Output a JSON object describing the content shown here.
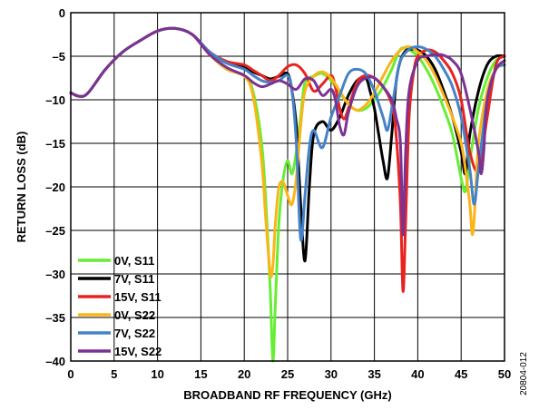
{
  "chart_data": {
    "type": "line",
    "xlabel": "BROADBAND RF FREQUENCY (GHz)",
    "ylabel": "RETURN LOSS (dB)",
    "xlim": [
      0,
      50
    ],
    "ylim": [
      -40,
      0
    ],
    "xticks": [
      0,
      5,
      10,
      15,
      20,
      25,
      30,
      35,
      40,
      45,
      50
    ],
    "yticks": [
      0,
      -5,
      -10,
      -15,
      -20,
      -25,
      -30,
      -35,
      -40
    ],
    "ytick_labels": [
      "0",
      "–5",
      "–10",
      "–15",
      "–20",
      "–25",
      "–30",
      "–35",
      "–40"
    ],
    "grid": true,
    "legend_position": "bottom-left",
    "figure_id": "20804-012",
    "series": [
      {
        "name": "0V, S11",
        "color": "#66ee33",
        "x": [
          0,
          1,
          2,
          4,
          6,
          8,
          10,
          12,
          14,
          16,
          18,
          20,
          21,
          22,
          22.5,
          23,
          23.3,
          23.6,
          24,
          24.5,
          25,
          25.5,
          26,
          26.5,
          27,
          28,
          29,
          30,
          31,
          32,
          33,
          34,
          35,
          36,
          37,
          38,
          39,
          40,
          41,
          42,
          43,
          44,
          45,
          45.5,
          46,
          47,
          48,
          49,
          50
        ],
        "y": [
          -9.2,
          -9.6,
          -9.2,
          -6.5,
          -4.5,
          -3.2,
          -2.1,
          -1.8,
          -2.5,
          -4.8,
          -6.5,
          -7.2,
          -9,
          -15,
          -22,
          -32,
          -40,
          -33,
          -24,
          -19,
          -17,
          -18.5,
          -16,
          -12,
          -8,
          -7.3,
          -7,
          -7.8,
          -9.2,
          -10.5,
          -11.2,
          -11,
          -10,
          -8.5,
          -6.5,
          -4.2,
          -4.3,
          -5,
          -6.5,
          -8.5,
          -11,
          -14,
          -19,
          -20.5,
          -17,
          -11,
          -7.5,
          -5.5,
          -5
        ]
      },
      {
        "name": "7V, S11",
        "color": "#000000",
        "x": [
          0,
          1,
          2,
          4,
          6,
          8,
          10,
          12,
          14,
          16,
          18,
          20,
          21,
          22,
          23,
          24,
          25,
          25.5,
          26,
          26.5,
          27,
          27.5,
          28,
          29,
          30,
          31,
          32,
          33,
          34,
          34.5,
          35,
          35.5,
          36,
          36.5,
          37,
          37.5,
          38,
          38.5,
          39,
          40,
          41,
          42,
          43,
          44,
          45,
          45.5,
          46,
          47,
          48,
          49,
          50
        ],
        "y": [
          -9.2,
          -9.6,
          -9.2,
          -6.5,
          -4.5,
          -3.2,
          -2.1,
          -1.8,
          -2.5,
          -4.5,
          -5.8,
          -6.2,
          -6.8,
          -7.2,
          -7.6,
          -7.3,
          -7,
          -9,
          -13,
          -22,
          -28.5,
          -20,
          -14,
          -12.5,
          -13.5,
          -12,
          -9.5,
          -7.8,
          -7.5,
          -9,
          -11,
          -14,
          -17,
          -19,
          -14,
          -8,
          -5.5,
          -4.5,
          -4.2,
          -4.3,
          -5,
          -6.5,
          -9,
          -12,
          -16,
          -18.5,
          -14,
          -9,
          -6,
          -5,
          -5
        ]
      },
      {
        "name": "15V, S11",
        "color": "#e8231e",
        "x": [
          0,
          1,
          2,
          4,
          6,
          8,
          10,
          12,
          14,
          16,
          18,
          20,
          21,
          22,
          23,
          24,
          25,
          26,
          27,
          28,
          29,
          30,
          30.5,
          31,
          31.5,
          32,
          33,
          34,
          35,
          36,
          37,
          37.5,
          38,
          38.3,
          38.6,
          39,
          39.5,
          40,
          41,
          42,
          43,
          44,
          45,
          46,
          47,
          48,
          49,
          50
        ],
        "y": [
          -9.2,
          -9.6,
          -9.2,
          -6.5,
          -4.5,
          -3.2,
          -2.1,
          -1.8,
          -2.5,
          -4.5,
          -5.6,
          -6,
          -6.6,
          -7.2,
          -7.8,
          -7.2,
          -6.2,
          -6,
          -7,
          -9,
          -8.2,
          -7.2,
          -8.5,
          -11,
          -12.2,
          -11,
          -8,
          -7.2,
          -7.5,
          -8.5,
          -10.5,
          -14,
          -22,
          -32,
          -24,
          -12,
          -7,
          -5,
          -4.3,
          -4.5,
          -5.5,
          -7,
          -10,
          -16,
          -18,
          -12,
          -6,
          -5
        ]
      },
      {
        "name": "0V, S22",
        "color": "#fbb516",
        "x": [
          0,
          1,
          2,
          4,
          6,
          8,
          10,
          12,
          14,
          16,
          18,
          20,
          21,
          22,
          22.5,
          23,
          23.3,
          23.6,
          24,
          24.5,
          25,
          25.5,
          26,
          26.5,
          27,
          28,
          29,
          30,
          31,
          32,
          33,
          34,
          35,
          36,
          37,
          38,
          39,
          40,
          41,
          42,
          43,
          44,
          45,
          45.5,
          46,
          46.3,
          46.6,
          47,
          48,
          49,
          50
        ],
        "y": [
          -9.2,
          -9.6,
          -9.2,
          -6.5,
          -4.5,
          -3.2,
          -2.1,
          -1.8,
          -2.5,
          -4.8,
          -6.5,
          -7.3,
          -9.5,
          -17,
          -24,
          -30,
          -29,
          -24,
          -20,
          -19.5,
          -21,
          -22,
          -19,
          -13,
          -9,
          -7.3,
          -6.8,
          -7.5,
          -9,
          -10.5,
          -11.2,
          -10.6,
          -9.2,
          -7.3,
          -5.5,
          -4.3,
          -3.9,
          -4.5,
          -5.5,
          -7.2,
          -9.5,
          -12,
          -15,
          -18,
          -22,
          -25.5,
          -22,
          -15,
          -9,
          -6.5,
          -6
        ]
      },
      {
        "name": "7V, S22",
        "color": "#4682c8",
        "x": [
          0,
          1,
          2,
          4,
          6,
          8,
          10,
          12,
          14,
          16,
          18,
          20,
          21,
          22,
          23,
          24,
          25,
          25.5,
          26,
          26.5,
          27,
          27.5,
          28,
          29,
          30,
          31,
          32,
          33,
          34,
          35,
          36,
          36.5,
          37,
          37.5,
          38,
          39,
          40,
          41,
          42,
          43,
          44,
          45,
          46,
          46.5,
          47,
          48,
          49,
          50
        ],
        "y": [
          -9.2,
          -9.6,
          -9.2,
          -6.5,
          -4.5,
          -3.2,
          -2.1,
          -1.8,
          -2.5,
          -4.5,
          -5.8,
          -6.5,
          -7.2,
          -7.8,
          -8,
          -7.8,
          -7.2,
          -9,
          -15,
          -26,
          -21,
          -15.5,
          -13.5,
          -15.5,
          -12,
          -9.5,
          -7,
          -6.5,
          -7,
          -9,
          -12,
          -13.5,
          -11,
          -8,
          -5.5,
          -4.2,
          -3.9,
          -4.2,
          -5,
          -6.5,
          -8.5,
          -12,
          -18,
          -22,
          -18,
          -10,
          -6.5,
          -6
        ]
      },
      {
        "name": "15V, S22",
        "color": "#7b3294",
        "x": [
          0,
          1,
          2,
          4,
          6,
          8,
          10,
          12,
          14,
          16,
          18,
          20,
          21,
          22,
          23,
          24,
          25,
          26,
          27,
          28,
          29,
          30,
          30.5,
          31,
          31.5,
          32,
          33,
          34,
          35,
          36,
          37,
          37.5,
          38,
          38.3,
          38.6,
          39,
          40,
          41,
          42,
          43,
          44,
          45,
          46,
          47,
          47.3,
          47.6,
          48,
          49,
          50
        ],
        "y": [
          -9.2,
          -9.6,
          -9.2,
          -6.5,
          -4.5,
          -3.2,
          -2.1,
          -1.8,
          -2.5,
          -4.8,
          -6.3,
          -7.2,
          -8,
          -8.5,
          -8.2,
          -7.8,
          -8.2,
          -8.8,
          -7.6,
          -7.8,
          -9.5,
          -8.8,
          -10,
          -13,
          -14,
          -11.5,
          -8.5,
          -7.5,
          -7.5,
          -8.5,
          -10,
          -12,
          -15,
          -25.5,
          -16,
          -9,
          -5.5,
          -5,
          -4.8,
          -4.9,
          -5.5,
          -7,
          -11,
          -16,
          -18.5,
          -16,
          -10,
          -6.5,
          -5.5
        ]
      }
    ]
  }
}
